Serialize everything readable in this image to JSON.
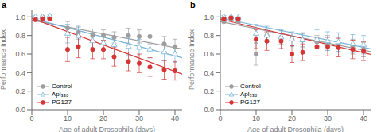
{
  "chart_data": [
    {
      "type": "scatter",
      "title": "a",
      "xlabel": "Age of adult Drosophila (days)",
      "ylabel": "Performance Index",
      "xlim": [
        0,
        42
      ],
      "ylim": [
        0.0,
        1.08
      ],
      "xticks": [
        0,
        10,
        20,
        30,
        40
      ],
      "yticks": [
        {
          "value": 0.0,
          "label": "0.0"
        },
        0.2,
        0.4,
        0.6,
        0.8,
        {
          "value": 1.0,
          "label": "1.0"
        }
      ],
      "grid": false,
      "legend": "lower left",
      "x": [
        1,
        3,
        5,
        10,
        13,
        17,
        20,
        23,
        27,
        30,
        33,
        37,
        40
      ],
      "series": [
        {
          "name": "Control",
          "color": "#9e9e9e",
          "marker": "circle",
          "line_style": "solid",
          "values": [
            0.98,
            1.0,
            0.99,
            0.88,
            0.83,
            0.8,
            0.8,
            0.78,
            0.8,
            0.79,
            0.79,
            0.71,
            0.68
          ],
          "yerr": [
            0.015,
            0.01,
            0.01,
            0.07,
            0.07,
            0.07,
            0.06,
            0.06,
            0.08,
            0.07,
            0.08,
            0.08,
            0.08
          ],
          "trend_line": {
            "x": [
              0,
              42
            ],
            "y": [
              0.965,
              0.6542
            ]
          }
        },
        {
          "name": "Apl₃₃₈",
          "color": "#74b3d8",
          "marker": "open-triangle",
          "line_style": "solid",
          "values": [
            1.0,
            1.0,
            1.01,
            0.82,
            0.79,
            0.74,
            0.72,
            0.7,
            0.68,
            0.67,
            0.65,
            0.62,
            0.6
          ],
          "yerr": [
            0.015,
            0.01,
            0.01,
            0.1,
            0.1,
            0.08,
            0.08,
            0.08,
            0.09,
            0.09,
            0.09,
            0.09,
            0.09
          ],
          "trend_line": {
            "x": [
              0,
              42
            ],
            "y": [
              0.985,
              0.5608
            ]
          }
        },
        {
          "name": "PG127",
          "color": "#d63333",
          "marker": "circle",
          "line_style": "solid",
          "values": [
            0.97,
            0.98,
            0.98,
            0.65,
            0.68,
            0.65,
            0.65,
            0.57,
            0.52,
            0.5,
            0.46,
            0.43,
            0.42
          ],
          "yerr": [
            0.015,
            0.01,
            0.01,
            0.13,
            0.12,
            0.1,
            0.1,
            0.1,
            0.1,
            0.1,
            0.1,
            0.1,
            0.1
          ],
          "trend_line": {
            "x": [
              0,
              42
            ],
            "y": [
              0.985,
              0.3844
            ]
          }
        }
      ]
    },
    {
      "type": "scatter",
      "title": "b",
      "xlabel": "Age of adult Drosophila (days)",
      "ylabel": "Performance Index",
      "xlim": [
        0,
        42
      ],
      "ylim": [
        0.0,
        1.08
      ],
      "xticks": [
        0,
        10,
        20,
        30,
        40
      ],
      "yticks": [
        {
          "value": 0.0,
          "label": "0.0"
        },
        0.2,
        0.4,
        0.6,
        0.8,
        {
          "value": 1.0,
          "label": "1.0"
        }
      ],
      "grid": false,
      "legend": "lower left",
      "x": [
        1,
        3,
        5,
        10,
        13,
        17,
        20,
        23,
        27,
        30,
        33,
        37,
        40
      ],
      "series": [
        {
          "name": "Control",
          "color": "#9e9e9e",
          "marker": "circle",
          "line_style": "solid",
          "values": [
            0.95,
            0.98,
            0.95,
            0.6,
            0.8,
            0.78,
            0.76,
            0.75,
            0.73,
            0.72,
            0.7,
            0.68,
            0.65
          ],
          "yerr": [
            0.015,
            0.01,
            0.01,
            0.12,
            0.07,
            0.07,
            0.07,
            0.07,
            0.07,
            0.08,
            0.08,
            0.08,
            0.08
          ],
          "trend_line": {
            "x": [
              0,
              42
            ],
            "y": [
              0.95,
              0.6266
            ]
          }
        },
        {
          "name": "Apl₃₃₈",
          "color": "#74b3d8",
          "marker": "open-triangle",
          "line_style": "solid",
          "values": [
            1.0,
            1.0,
            0.99,
            0.82,
            0.8,
            0.78,
            0.76,
            0.75,
            0.76,
            0.74,
            0.73,
            0.71,
            0.7
          ],
          "yerr": [
            0.015,
            0.01,
            0.01,
            0.1,
            0.1,
            0.08,
            0.08,
            0.08,
            0.1,
            0.1,
            0.1,
            0.1,
            0.1
          ],
          "trend_line": {
            "x": [
              0,
              42
            ],
            "y": [
              0.988,
              0.6562
            ]
          }
        },
        {
          "name": "PG127",
          "color": "#d63333",
          "marker": "circle",
          "line_style": "solid",
          "values": [
            0.98,
            0.99,
            0.98,
            0.76,
            0.74,
            0.74,
            0.6,
            0.62,
            0.68,
            0.68,
            0.67,
            0.65,
            0.63
          ],
          "yerr": [
            0.015,
            0.01,
            0.01,
            0.1,
            0.1,
            0.08,
            0.09,
            0.09,
            0.1,
            0.1,
            0.1,
            0.1,
            0.1
          ],
          "trend_line": {
            "x": [
              0,
              42
            ],
            "y": [
              0.975,
              0.597
            ]
          }
        }
      ]
    }
  ]
}
